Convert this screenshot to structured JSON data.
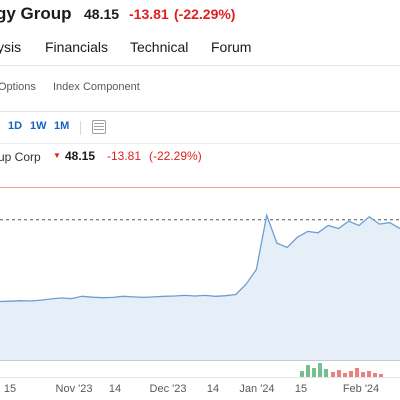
{
  "header": {
    "title": "gy Group",
    "price": "48.15",
    "change": "-13.81",
    "change_pct": "(-22.29%)"
  },
  "main_nav": {
    "items": [
      "ysis",
      "Financials",
      "Technical",
      "Forum"
    ]
  },
  "sub_nav": {
    "items": [
      "Options",
      "Index Component"
    ]
  },
  "toolbar": {
    "ranges": [
      "1D",
      "1W",
      "1M"
    ],
    "table_icon": "table-icon"
  },
  "legend": {
    "name": "up Corp",
    "arrow_icon": "down-arrow-icon",
    "price": "48.15",
    "change": "-13.81",
    "change_pct": "(-22.29%)"
  },
  "colors": {
    "down": "#e02020",
    "line": "#6d9ed3",
    "area": "#e6eff8",
    "link": "#1565c0",
    "ref_line": "#f2a493"
  },
  "chart_data": {
    "type": "area",
    "x_labels": [
      "15",
      "Nov '23",
      "14",
      "Dec '23",
      "14",
      "Jan '24",
      "15",
      "Feb '24"
    ],
    "series": [
      {
        "values": [
          20.0,
          20.1,
          20.3,
          20.2,
          20.5,
          20.9,
          21.2,
          21.0,
          21.8,
          21.5,
          21.3,
          21.4,
          21.8,
          21.6,
          21.4,
          21.6,
          21.8,
          21.9,
          22.1,
          21.9,
          22.1,
          21.8,
          22.0,
          22.4,
          26.0,
          31.0,
          49.5,
          40.0,
          38.5,
          42.0,
          44.0,
          43.5,
          46.0,
          45.0,
          47.5,
          46.0,
          49.0,
          46.5,
          47.0,
          45.0
        ]
      }
    ],
    "up_bars": [
      6,
      12,
      9,
      14,
      8
    ],
    "down_bars": [
      5,
      7,
      4,
      6,
      9,
      5,
      6,
      4,
      3
    ],
    "reference_high": 59.0,
    "reference_close": 48.0,
    "ylim": [
      0,
      65
    ]
  }
}
